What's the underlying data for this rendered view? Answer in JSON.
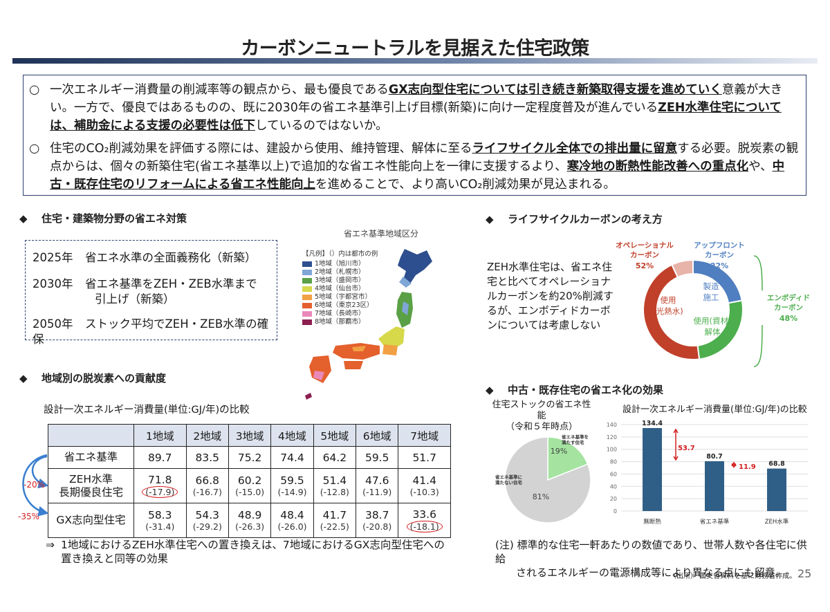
{
  "title": "カーボンニュートラルを見据えた住宅政策",
  "summary": {
    "bullet": "○",
    "p1": [
      {
        "t": "一次エネルギー消費量の削減率等の観点から、最も優良である",
        "b": false
      },
      {
        "t": "GX志向型住宅については引き続き新築取得支援を進めていく",
        "b": true
      },
      {
        "t": "意義が大きい。一方で、優良ではあるものの、既に2030年の省エネ基準引上げ目標(新築)に向け一定程度普及が進んでいる",
        "b": false
      },
      {
        "t": "ZEH水準住宅については、補助金による支援の必要性は低下",
        "b": true
      },
      {
        "t": "しているのではないか。",
        "b": false
      }
    ],
    "p2": [
      {
        "t": "住宅のCO₂削減効果を評価する際には、建設から使用、維持管理、解体に至る",
        "b": false
      },
      {
        "t": "ライフサイクル全体での排出量に留意",
        "b": true
      },
      {
        "t": "する必要。脱炭素の観点からは、個々の新築住宅(省エネ基準以上)で追加的な省エネ性能向上を一律に支援するより、",
        "b": false
      },
      {
        "t": "寒冷地の断熱性能改善への重点化",
        "b": true
      },
      {
        "t": "や、",
        "b": false
      },
      {
        "t": "中古・既存住宅のリフォームによる省エネ性能向上",
        "b": true
      },
      {
        "t": "を進めることで、より高いCO₂削減効果が見込まれる。",
        "b": false
      }
    ]
  },
  "sections": {
    "energy_measures": "住宅・建築物分野の省エネ対策",
    "region": "地域別の脱炭素への貢献度",
    "lifecycle": "ライフサイクルカーボンの考え方",
    "existing": "中古・既存住宅の省エネ化の効果",
    "bullet": "◆"
  },
  "policies": [
    {
      "year": "2025年",
      "text": "省エネ水準の全面義務化（新築）",
      "text2": ""
    },
    {
      "year": "2030年",
      "text": "省エネ基準をZEH・ZEB水準まで",
      "text2": "引上げ（新築）"
    },
    {
      "year": "2050年",
      "text": "ストック平均でZEH・ZEB水準の確保",
      "text2": ""
    }
  ],
  "map": {
    "title": "省エネ基準地域区分",
    "legend_header": "【凡例】（）内は都市の例",
    "legend": [
      {
        "label": "1地域（旭川市）",
        "color": "#2e4f8f"
      },
      {
        "label": "2地域（札幌市）",
        "color": "#7fa6d6"
      },
      {
        "label": "3地域（盛岡市）",
        "color": "#5aa046"
      },
      {
        "label": "4地域（仙台市）",
        "color": "#d7d84a"
      },
      {
        "label": "5地域（宇都宮市）",
        "color": "#f2a044"
      },
      {
        "label": "6地域（東京23区）",
        "color": "#e4602d"
      },
      {
        "label": "7地域（長崎市）",
        "color": "#e989b9"
      },
      {
        "label": "8地域（那覇市）",
        "color": "#8c1f4f"
      }
    ]
  },
  "table": {
    "caption": "設計一次エネルギー消費量(単位:GJ/年)の比較",
    "headers": [
      "1地域",
      "2地域",
      "3地域",
      "4地域",
      "5地域",
      "6地域",
      "7地域"
    ],
    "rows": [
      {
        "label": "省エネ基準",
        "values": [
          "89.7",
          "83.5",
          "75.2",
          "74.4",
          "64.2",
          "59.5",
          "51.7"
        ],
        "subs": []
      },
      {
        "label": "ZEH水準",
        "label2": "長期優良住宅",
        "values": [
          "71.8",
          "66.8",
          "60.2",
          "59.5",
          "51.4",
          "47.6",
          "41.4"
        ],
        "subs": [
          "(-17.9)",
          "(-16.7)",
          "(-15.0)",
          "(-14.9)",
          "(-12.8)",
          "(-11.9)",
          "(-10.3)"
        ]
      },
      {
        "label": "GX志向型住宅",
        "values": [
          "58.3",
          "54.3",
          "48.9",
          "48.4",
          "41.7",
          "38.7",
          "33.6"
        ],
        "subs": [
          "(-31.4)",
          "(-29.2)",
          "(-26.3)",
          "(-26.0)",
          "(-22.5)",
          "(-20.8)",
          "(-18.1)"
        ]
      }
    ],
    "pct_zeh": "-20%",
    "pct_gx": "-35%"
  },
  "conclusion": {
    "arrow": "⇒",
    "line1": "1地域におけるZEH水準住宅への置き換えは、7地域におけるGX志向型住宅への",
    "line2": "置き換えと同等の効果"
  },
  "lifecycle": {
    "desc": "ZEH水準住宅は、省エネ住宅と比べてオペレーショナルカーボンを約20%削減するが、エンボディドカーボンについては考慮しない",
    "operational_label": "オペレーショナル",
    "operational_label2": "カーボン",
    "operational_pct": "52%",
    "upfront_label": "アップフロント",
    "upfront_label2": "カーボン",
    "upfront_pct": "22%",
    "embodied_label": "エンボディド",
    "embodied_label2": "カーボン",
    "embodied_pct": "48%",
    "seg_use_heat": "使用",
    "seg_use_heat2": "(光熱水)",
    "seg_build": "製造",
    "seg_build2": "施工",
    "seg_use_mat": "使用(資材)",
    "seg_use_mat2": "解体",
    "colors": {
      "operational": "#c0402a",
      "upfront": "#4f7fc0",
      "embodied": "#4cae4c"
    }
  },
  "chart_data": [
    {
      "type": "pie",
      "title": "住宅ストックの省エネ性能",
      "subtitle": "（令和５年時点）",
      "labels": [
        "省エネ基準を満たす住宅",
        "省エネ基準に満たない住宅"
      ],
      "values": [
        19,
        81
      ],
      "value_labels": [
        "19%",
        "81%"
      ],
      "colors": [
        "#a4e3a0",
        "#d3d3d3"
      ]
    },
    {
      "type": "bar",
      "title": "設計一次エネルギー消費量(単位:GJ/年)の比較",
      "categories": [
        "無断熱",
        "省エネ基準",
        "ZEH水準"
      ],
      "values": [
        134.4,
        80.7,
        68.8
      ],
      "value_labels": [
        "134.4",
        "80.7",
        "68.8"
      ],
      "ylim": [
        0,
        140
      ],
      "yticks": [
        "0",
        "20",
        "40",
        "60",
        "80",
        "100",
        "120",
        "140"
      ],
      "grid": true,
      "bar_color": "#2f5f86",
      "diff1": "53.7",
      "diff2": "11.9"
    }
  ],
  "note": {
    "line1": "(注) 標準的な住宅一軒あたりの数値であり、世帯人数や各住宅に供給",
    "line2": "されるエネルギーの電源構成等により異なる点にも留意。"
  },
  "source": "（出所） 国交省資料を基に財務省作成。",
  "page_number": "25"
}
